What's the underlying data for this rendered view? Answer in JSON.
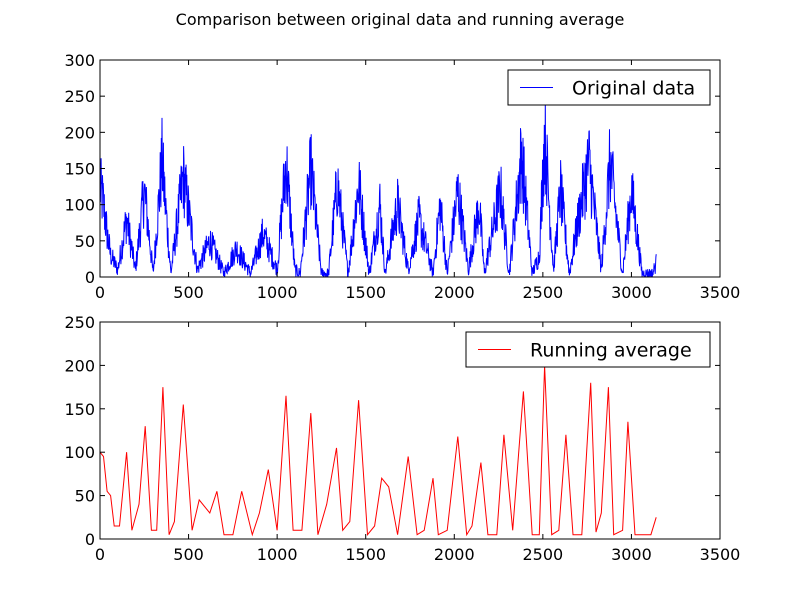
{
  "figure": {
    "title": "Comparison between original data and running average"
  },
  "chart_data": [
    {
      "type": "line",
      "title": "",
      "xlabel": "",
      "ylabel": "",
      "xlim": [
        0,
        3500
      ],
      "ylim": [
        0,
        300
      ],
      "xticks": [
        0,
        500,
        1000,
        1500,
        2000,
        2500,
        3000,
        3500
      ],
      "yticks": [
        0,
        50,
        100,
        150,
        200,
        250,
        300
      ],
      "grid": false,
      "legend_position": "top-right",
      "series": [
        {
          "name": "Original data",
          "color": "#0000ff",
          "noisy": true,
          "x": [
            0,
            20,
            40,
            60,
            100,
            150,
            200,
            250,
            300,
            350,
            400,
            470,
            550,
            620,
            700,
            770,
            850,
            920,
            1000,
            1050,
            1100,
            1130,
            1190,
            1250,
            1290,
            1340,
            1400,
            1460,
            1520,
            1580,
            1610,
            1680,
            1740,
            1800,
            1880,
            1920,
            1960,
            2020,
            2080,
            2140,
            2170,
            2260,
            2310,
            2380,
            2440,
            2480,
            2510,
            2560,
            2600,
            2650,
            2700,
            2760,
            2830,
            2880,
            2950,
            3000,
            3060,
            3120,
            3140
          ],
          "y": [
            125,
            100,
            60,
            30,
            10,
            80,
            10,
            120,
            5,
            160,
            5,
            140,
            10,
            50,
            5,
            40,
            5,
            60,
            10,
            160,
            10,
            5,
            150,
            5,
            5,
            130,
            5,
            130,
            5,
            100,
            5,
            100,
            10,
            80,
            5,
            100,
            5,
            120,
            10,
            100,
            5,
            120,
            5,
            170,
            5,
            30,
            200,
            10,
            120,
            5,
            80,
            160,
            10,
            160,
            5,
            120,
            5,
            5,
            20
          ]
        }
      ]
    },
    {
      "type": "line",
      "title": "",
      "xlabel": "",
      "ylabel": "",
      "xlim": [
        0,
        3500
      ],
      "ylim": [
        0,
        250
      ],
      "xticks": [
        0,
        500,
        1000,
        1500,
        2000,
        2500,
        3000,
        3500
      ],
      "yticks": [
        0,
        50,
        100,
        150,
        200,
        250
      ],
      "grid": false,
      "legend_position": "top-right",
      "series": [
        {
          "name": "Running average",
          "color": "#ff0000",
          "noisy": false,
          "x": [
            0,
            20,
            40,
            60,
            80,
            110,
            150,
            180,
            220,
            255,
            290,
            320,
            355,
            390,
            420,
            470,
            520,
            560,
            620,
            660,
            700,
            750,
            800,
            860,
            900,
            950,
            1000,
            1050,
            1090,
            1140,
            1190,
            1230,
            1280,
            1335,
            1370,
            1410,
            1460,
            1510,
            1550,
            1590,
            1630,
            1680,
            1740,
            1790,
            1830,
            1880,
            1910,
            1960,
            2020,
            2070,
            2100,
            2150,
            2190,
            2240,
            2280,
            2330,
            2390,
            2440,
            2480,
            2510,
            2550,
            2590,
            2630,
            2670,
            2720,
            2770,
            2800,
            2830,
            2870,
            2900,
            2950,
            2980,
            3020,
            3060,
            3110,
            3140
          ],
          "y": [
            100,
            95,
            55,
            50,
            15,
            15,
            100,
            10,
            40,
            130,
            10,
            10,
            175,
            5,
            20,
            155,
            10,
            45,
            30,
            55,
            5,
            5,
            55,
            5,
            30,
            80,
            10,
            165,
            10,
            10,
            145,
            5,
            40,
            105,
            10,
            20,
            160,
            5,
            15,
            70,
            60,
            5,
            95,
            5,
            10,
            70,
            5,
            10,
            118,
            5,
            15,
            88,
            5,
            5,
            120,
            10,
            170,
            5,
            5,
            200,
            5,
            10,
            120,
            5,
            5,
            180,
            8,
            30,
            175,
            5,
            10,
            135,
            5,
            5,
            5,
            25
          ]
        }
      ]
    }
  ]
}
